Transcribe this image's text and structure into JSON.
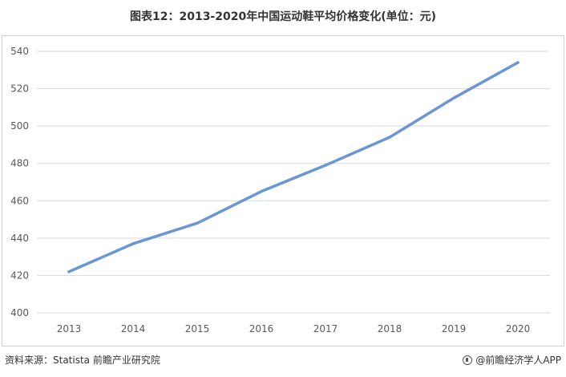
{
  "title": "图表12：2013-2020年中国运动鞋平均价格变化(单位：元)",
  "footer": {
    "source": "资料来源：Statista 前瞻产业研究院",
    "brand": "@前瞻经济学人APP",
    "brand_icon": "qianzhan-logo-icon"
  },
  "colors": {
    "line": "#6a97d4",
    "grid": "#d9d9d9",
    "axis_text": "#595959"
  },
  "chart_data": {
    "type": "line",
    "title": "图表12：2013-2020年中国运动鞋平均价格变化(单位：元)",
    "xlabel": "",
    "ylabel": "",
    "categories": [
      "2013",
      "2014",
      "2015",
      "2016",
      "2017",
      "2018",
      "2019",
      "2020"
    ],
    "values": [
      422,
      437,
      448,
      465,
      479,
      494,
      515,
      534
    ],
    "ylim": [
      400,
      540
    ],
    "yticks": [
      400,
      420,
      440,
      460,
      480,
      500,
      520,
      540
    ],
    "grid": true,
    "legend": "none"
  }
}
